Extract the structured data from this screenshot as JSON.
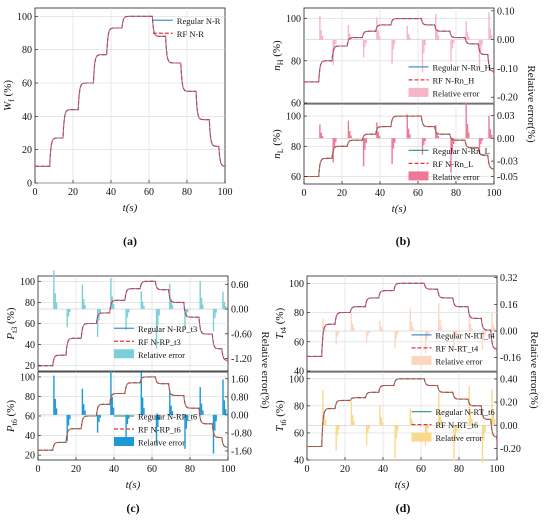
{
  "chart_data": [
    {
      "id": "a",
      "type": "line",
      "panel_label": "(a)",
      "xlabel": "t(s)",
      "ylabel": "W_f (%)",
      "xlim": [
        0,
        100
      ],
      "ylim": [
        0,
        105
      ],
      "xticks": [
        "0",
        "20",
        "40",
        "60",
        "80",
        "100"
      ],
      "yticks": [
        "0",
        "20",
        "40",
        "60",
        "80",
        "100"
      ],
      "legend": [
        "Regular N-R",
        "RF N-R"
      ],
      "steps": {
        "t": [
          0,
          8,
          15,
          23,
          31,
          38,
          46,
          54,
          62,
          69,
          77,
          85,
          92,
          97,
          100
        ],
        "value": [
          10,
          27,
          44,
          60,
          77,
          93,
          100,
          100,
          88,
          72,
          55,
          38,
          22,
          10,
          10
        ]
      }
    },
    {
      "id": "b-top",
      "type": "line",
      "panel_label": "(b)",
      "ylabel": "n_H (%)",
      "ylabel_right": "Relative error(%)",
      "ylim": [
        60,
        105
      ],
      "ylim_right": [
        -0.22,
        0.11
      ],
      "yticks": [
        "60",
        "80",
        "100"
      ],
      "yticks_right": [
        "0.10",
        "0.00",
        "-0.10",
        "-0.20"
      ],
      "legend": [
        "Regular N-Rn_H",
        "RF N-Rn_H",
        "Relative error"
      ],
      "steps": {
        "t": [
          0,
          8,
          15,
          23,
          31,
          38,
          46,
          54,
          62,
          69,
          77,
          85,
          92,
          97,
          100
        ],
        "value": [
          70,
          80,
          87,
          91,
          94,
          97,
          100,
          100,
          97,
          94,
          91,
          88,
          83,
          75,
          70
        ]
      }
    },
    {
      "id": "b-bottom",
      "type": "line",
      "xlabel": "t(s)",
      "ylabel": "n_L (%)",
      "ylim": [
        55,
        108
      ],
      "ylim_right": [
        -0.06,
        0.045
      ],
      "xticks": [
        "0",
        "20",
        "40",
        "60",
        "80",
        "100"
      ],
      "yticks": [
        "60",
        "80",
        "100"
      ],
      "yticks_right": [
        "0.03",
        "0.00",
        "-0.03",
        "-0.05"
      ],
      "legend": [
        "Regular N-Rn_L",
        "RF N-Rn_L",
        "Relative error"
      ],
      "steps": {
        "t": [
          0,
          8,
          15,
          23,
          31,
          38,
          46,
          54,
          62,
          69,
          77,
          85,
          92,
          97,
          100
        ],
        "value": [
          60,
          72,
          80,
          84,
          88,
          93,
          100,
          100,
          93,
          88,
          84,
          79,
          74,
          65,
          60
        ]
      }
    },
    {
      "id": "c-top",
      "type": "line",
      "panel_label": "(c)",
      "ylabel": "P_t3 (%)",
      "ylabel_right": "Relative error(%)",
      "ylim": [
        15,
        105
      ],
      "ylim_right": [
        -1.5,
        0.8
      ],
      "yticks": [
        "20",
        "40",
        "60",
        "80",
        "100"
      ],
      "yticks_right": [
        "0.60",
        "0.00",
        "-0.60",
        "-1.20"
      ],
      "legend": [
        "Regular N-RP_t3",
        "RF N-RP_t3",
        "Relative error"
      ],
      "steps": {
        "t": [
          0,
          8,
          15,
          23,
          31,
          38,
          46,
          54,
          62,
          69,
          77,
          85,
          92,
          97,
          100
        ],
        "value": [
          20,
          30,
          46,
          60,
          70,
          82,
          93,
          100,
          92,
          80,
          66,
          50,
          36,
          25,
          20
        ]
      }
    },
    {
      "id": "c-bottom",
      "type": "line",
      "xlabel": "t(s)",
      "ylabel": "P_t6 (%)",
      "ylim": [
        15,
        105
      ],
      "ylim_right": [
        -2.0,
        1.9
      ],
      "xticks": [
        "0",
        "20",
        "40",
        "60",
        "80",
        "100"
      ],
      "yticks": [
        "20",
        "40",
        "60",
        "80",
        "100"
      ],
      "yticks_right": [
        "1.60",
        "0.80",
        "0.00",
        "-0.80",
        "-1.60"
      ],
      "legend": [
        "Regular N-RP_t6",
        "RF N-RP_t6",
        "Relative error"
      ],
      "steps": {
        "t": [
          0,
          8,
          15,
          23,
          31,
          38,
          46,
          54,
          62,
          69,
          77,
          85,
          92,
          97,
          100
        ],
        "value": [
          25,
          33,
          47,
          60,
          72,
          83,
          94,
          100,
          93,
          81,
          68,
          52,
          38,
          28,
          25
        ]
      }
    },
    {
      "id": "d-top",
      "type": "line",
      "panel_label": "(d)",
      "ylabel": "T_t4 (%)",
      "ylabel_right": "Relative error(%)",
      "ylim": [
        40,
        105
      ],
      "ylim_right": [
        -0.24,
        0.33
      ],
      "yticks": [
        "40",
        "60",
        "80",
        "100"
      ],
      "yticks_right": [
        "0.32",
        "0.16",
        "0.00",
        "-0.16"
      ],
      "legend": [
        "Regular N-RT_t4",
        "RF N-RT_t4",
        "Relative error"
      ],
      "steps": {
        "t": [
          0,
          8,
          15,
          23,
          31,
          38,
          46,
          54,
          62,
          69,
          77,
          85,
          92,
          97,
          100
        ],
        "value": [
          50,
          72,
          80,
          84,
          90,
          95,
          100,
          100,
          96,
          90,
          84,
          76,
          68,
          55,
          50
        ]
      }
    },
    {
      "id": "d-bottom",
      "type": "line",
      "xlabel": "t(s)",
      "ylabel": "T_t6 (%)",
      "ylim": [
        40,
        105
      ],
      "ylim_right": [
        -0.3,
        0.46
      ],
      "xticks": [
        "0",
        "20",
        "40",
        "60",
        "80",
        "100"
      ],
      "yticks": [
        "40",
        "60",
        "80",
        "100"
      ],
      "yticks_right": [
        "0.40",
        "0.20",
        "0.00",
        "-0.20"
      ],
      "legend": [
        "Regular N-RT_t6",
        "RF N-RT_t6",
        "Relative error"
      ],
      "steps": {
        "t": [
          0,
          8,
          15,
          23,
          31,
          38,
          46,
          54,
          62,
          69,
          77,
          85,
          92,
          97,
          100
        ],
        "value": [
          50,
          78,
          84,
          86,
          90,
          95,
          100,
          100,
          95,
          90,
          85,
          80,
          70,
          57,
          50
        ]
      }
    }
  ],
  "colors": {
    "regular": "#4a90c8",
    "regular_green": "#3aa080",
    "rf": "#e8343a",
    "err_pink": "#f7b6c8",
    "err_pink_dark": "#ee7896",
    "err_cyan": "#7ccfd6",
    "err_blue": "#1d9ad6",
    "err_peach": "#fbd6c0",
    "err_yellow": "#f9d98a"
  }
}
